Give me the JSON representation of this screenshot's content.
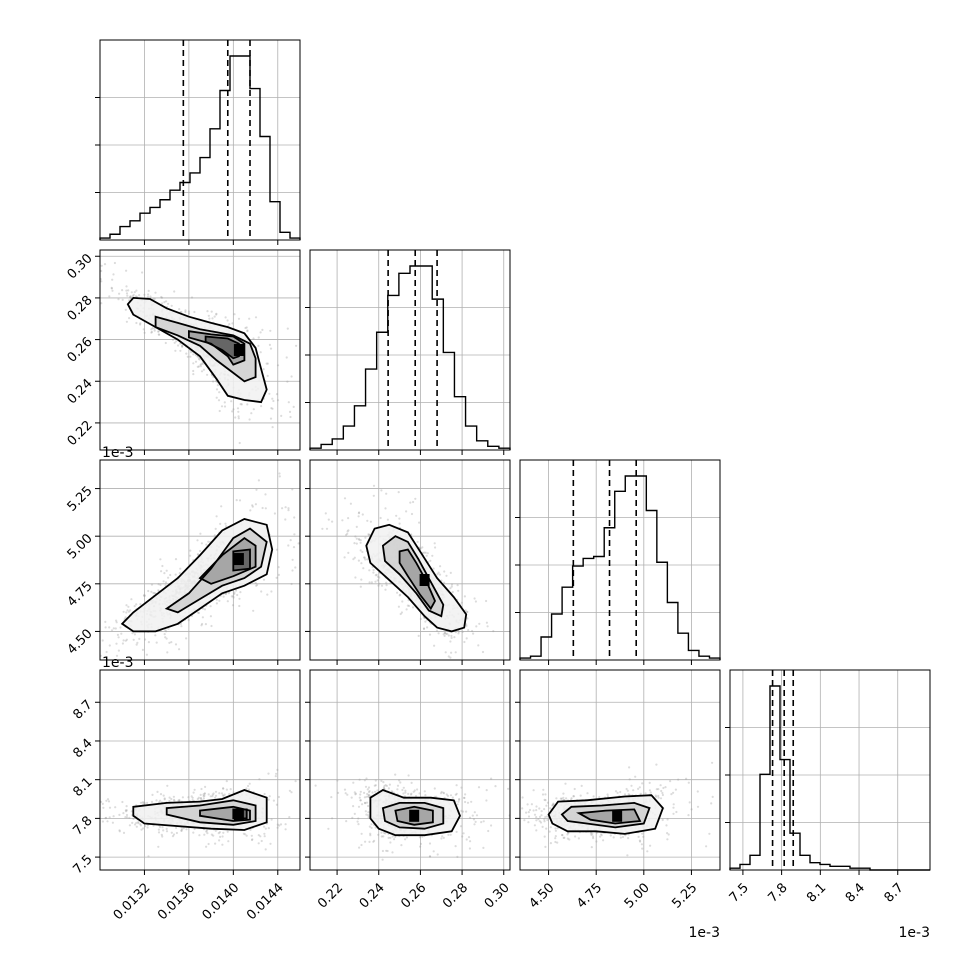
{
  "chart_data": {
    "type": "corner",
    "parameters": [
      {
        "range": [
          0.0128,
          0.0146
        ],
        "ticks": [
          0.0132,
          0.0136,
          0.014,
          0.0144
        ],
        "tick_labels": [
          "0.0132",
          "0.0136",
          "0.0140",
          "0.0144"
        ],
        "offset_label": "",
        "quantiles": [
          0.01355,
          0.01395,
          0.01415
        ],
        "hist_counts": [
          1,
          3,
          7,
          10,
          14,
          17,
          21,
          26,
          30,
          35,
          43,
          58,
          78,
          96,
          96,
          79,
          54,
          20,
          4,
          1
        ]
      },
      {
        "range": [
          0.207,
          0.303
        ],
        "ticks": [
          0.22,
          0.24,
          0.26,
          0.28,
          0.3
        ],
        "tick_labels": [
          "0.22",
          "0.24",
          "0.26",
          "0.28",
          "0.30"
        ],
        "offset_label": "",
        "quantiles": [
          0.2445,
          0.2575,
          0.268
        ],
        "hist_counts": [
          1,
          3,
          6,
          13,
          24,
          44,
          64,
          84,
          96,
          100,
          100,
          82,
          53,
          29,
          13,
          5,
          2,
          1
        ]
      },
      {
        "range": [
          4.35,
          5.4
        ],
        "ticks": [
          4.5,
          4.75,
          5.0,
          5.25
        ],
        "tick_labels": [
          "4.50",
          "4.75",
          "5.00",
          "5.25"
        ],
        "offset_label": "1e-3",
        "quantiles": [
          4.63,
          4.82,
          4.96
        ],
        "hist_counts": [
          1,
          2,
          12,
          24,
          38,
          49,
          53,
          54,
          69,
          88,
          96,
          96,
          78,
          51,
          30,
          14,
          5,
          2,
          1
        ]
      },
      {
        "range": [
          7.4,
          8.95
        ],
        "ticks": [
          7.5,
          7.8,
          8.1,
          8.4,
          8.7
        ],
        "tick_labels": [
          "7.5",
          "7.8",
          "8.1",
          "8.4",
          "8.7"
        ],
        "offset_label": "1e-3",
        "quantiles": [
          7.73,
          7.82,
          7.89
        ],
        "hist_counts": [
          1,
          3,
          8,
          52,
          100,
          60,
          20,
          8,
          4,
          3,
          2,
          2,
          1,
          1,
          0,
          0,
          0,
          0,
          0,
          0
        ]
      }
    ],
    "pairs": [
      {
        "x": 0,
        "y": 1,
        "peak": [
          0.01405,
          0.255
        ],
        "contours": [
          [
            [
              0.0131,
              0.28
            ],
            [
              0.01325,
              0.2795
            ],
            [
              0.0134,
              0.275
            ],
            [
              0.0136,
              0.271
            ],
            [
              0.0138,
              0.268
            ],
            [
              0.01395,
              0.266
            ],
            [
              0.0141,
              0.263
            ],
            [
              0.0142,
              0.256
            ],
            [
              0.01425,
              0.246
            ],
            [
              0.0143,
              0.236
            ],
            [
              0.01425,
              0.23
            ],
            [
              0.0141,
              0.231
            ],
            [
              0.01395,
              0.233
            ],
            [
              0.01385,
              0.241
            ],
            [
              0.0137,
              0.252
            ],
            [
              0.0135,
              0.26
            ],
            [
              0.0133,
              0.266
            ],
            [
              0.0131,
              0.272
            ],
            [
              0.01305,
              0.277
            ],
            [
              0.0131,
              0.28
            ]
          ],
          [
            [
              0.0133,
              0.271
            ],
            [
              0.0135,
              0.268
            ],
            [
              0.0137,
              0.265
            ],
            [
              0.01385,
              0.2635
            ],
            [
              0.014,
              0.262
            ],
            [
              0.01415,
              0.258
            ],
            [
              0.0142,
              0.251
            ],
            [
              0.0142,
              0.242
            ],
            [
              0.0141,
              0.24
            ],
            [
              0.014,
              0.244
            ],
            [
              0.01385,
              0.25
            ],
            [
              0.0137,
              0.257
            ],
            [
              0.0135,
              0.262
            ],
            [
              0.0133,
              0.266
            ],
            [
              0.0133,
              0.271
            ]
          ],
          [
            [
              0.0136,
              0.264
            ],
            [
              0.0138,
              0.2625
            ],
            [
              0.014,
              0.2615
            ],
            [
              0.0141,
              0.258
            ],
            [
              0.0141,
              0.25
            ],
            [
              0.014,
              0.248
            ],
            [
              0.01395,
              0.252
            ],
            [
              0.0138,
              0.258
            ],
            [
              0.0136,
              0.261
            ],
            [
              0.0136,
              0.264
            ]
          ],
          [
            [
              0.01375,
              0.2615
            ],
            [
              0.01395,
              0.2605
            ],
            [
              0.01405,
              0.258
            ],
            [
              0.01405,
              0.252
            ],
            [
              0.014,
              0.251
            ],
            [
              0.0139,
              0.255
            ],
            [
              0.01375,
              0.259
            ],
            [
              0.01375,
              0.2615
            ]
          ]
        ]
      },
      {
        "x": 0,
        "y": 2,
        "peak": [
          0.01405,
          4.88
        ],
        "contours": [
          [
            [
              0.013,
              4.54
            ],
            [
              0.0131,
              4.6
            ],
            [
              0.0133,
              4.69
            ],
            [
              0.0135,
              4.78
            ],
            [
              0.0137,
              4.9
            ],
            [
              0.0139,
              5.03
            ],
            [
              0.0141,
              5.09
            ],
            [
              0.0143,
              5.06
            ],
            [
              0.01435,
              4.93
            ],
            [
              0.0143,
              4.8
            ],
            [
              0.0141,
              4.74
            ],
            [
              0.0139,
              4.7
            ],
            [
              0.0137,
              4.62
            ],
            [
              0.0135,
              4.54
            ],
            [
              0.0133,
              4.5
            ],
            [
              0.0131,
              4.5
            ],
            [
              0.013,
              4.54
            ]
          ],
          [
            [
              0.0134,
              4.62
            ],
            [
              0.0136,
              4.7
            ],
            [
              0.0138,
              4.83
            ],
            [
              0.014,
              4.99
            ],
            [
              0.01415,
              5.04
            ],
            [
              0.0143,
              4.97
            ],
            [
              0.01425,
              4.84
            ],
            [
              0.0141,
              4.78
            ],
            [
              0.0139,
              4.74
            ],
            [
              0.0137,
              4.67
            ],
            [
              0.0135,
              4.6
            ],
            [
              0.0134,
              4.62
            ]
          ],
          [
            [
              0.0137,
              4.78
            ],
            [
              0.0139,
              4.9
            ],
            [
              0.0141,
              4.99
            ],
            [
              0.0142,
              4.95
            ],
            [
              0.0142,
              4.84
            ],
            [
              0.014,
              4.79
            ],
            [
              0.0138,
              4.75
            ],
            [
              0.0137,
              4.78
            ]
          ],
          [
            [
              0.014,
              4.92
            ],
            [
              0.01415,
              4.93
            ],
            [
              0.01415,
              4.83
            ],
            [
              0.014,
              4.82
            ],
            [
              0.014,
              4.92
            ]
          ]
        ]
      },
      {
        "x": 1,
        "y": 2,
        "peak": [
          0.262,
          4.77
        ],
        "contours": [
          [
            [
              0.234,
              4.95
            ],
            [
              0.238,
              5.04
            ],
            [
              0.245,
              5.06
            ],
            [
              0.254,
              5.02
            ],
            [
              0.261,
              4.9
            ],
            [
              0.268,
              4.78
            ],
            [
              0.276,
              4.68
            ],
            [
              0.282,
              4.59
            ],
            [
              0.281,
              4.52
            ],
            [
              0.275,
              4.5
            ],
            [
              0.268,
              4.52
            ],
            [
              0.262,
              4.58
            ],
            [
              0.254,
              4.68
            ],
            [
              0.244,
              4.78
            ],
            [
              0.236,
              4.86
            ],
            [
              0.234,
              4.95
            ]
          ],
          [
            [
              0.242,
              4.95
            ],
            [
              0.248,
              5.0
            ],
            [
              0.254,
              4.97
            ],
            [
              0.259,
              4.88
            ],
            [
              0.265,
              4.76
            ],
            [
              0.271,
              4.64
            ],
            [
              0.27,
              4.58
            ],
            [
              0.264,
              4.61
            ],
            [
              0.258,
              4.7
            ],
            [
              0.25,
              4.8
            ],
            [
              0.243,
              4.87
            ],
            [
              0.242,
              4.95
            ]
          ],
          [
            [
              0.25,
              4.92
            ],
            [
              0.254,
              4.93
            ],
            [
              0.258,
              4.86
            ],
            [
              0.263,
              4.76
            ],
            [
              0.267,
              4.66
            ],
            [
              0.265,
              4.62
            ],
            [
              0.26,
              4.69
            ],
            [
              0.254,
              4.79
            ],
            [
              0.25,
              4.86
            ],
            [
              0.25,
              4.92
            ]
          ]
        ]
      },
      {
        "x": 0,
        "y": 3,
        "peak": [
          0.01405,
          7.83
        ],
        "contours": [
          [
            [
              0.0131,
              7.82
            ],
            [
              0.0131,
              7.89
            ],
            [
              0.0134,
              7.92
            ],
            [
              0.0137,
              7.93
            ],
            [
              0.0139,
              7.95
            ],
            [
              0.0141,
              8.02
            ],
            [
              0.0143,
              7.96
            ],
            [
              0.0143,
              7.77
            ],
            [
              0.0141,
              7.71
            ],
            [
              0.0138,
              7.72
            ],
            [
              0.0135,
              7.74
            ],
            [
              0.0132,
              7.76
            ],
            [
              0.0131,
              7.82
            ]
          ],
          [
            [
              0.0134,
              7.83
            ],
            [
              0.0134,
              7.88
            ],
            [
              0.0137,
              7.9
            ],
            [
              0.014,
              7.94
            ],
            [
              0.0142,
              7.9
            ],
            [
              0.0142,
              7.78
            ],
            [
              0.014,
              7.75
            ],
            [
              0.0137,
              7.77
            ],
            [
              0.0134,
              7.83
            ]
          ],
          [
            [
              0.0137,
              7.82
            ],
            [
              0.0137,
              7.86
            ],
            [
              0.014,
              7.89
            ],
            [
              0.01415,
              7.86
            ],
            [
              0.01415,
              7.79
            ],
            [
              0.014,
              7.78
            ],
            [
              0.0137,
              7.82
            ]
          ],
          [
            [
              0.014,
              7.8
            ],
            [
              0.014,
              7.87
            ],
            [
              0.01412,
              7.87
            ],
            [
              0.01412,
              7.8
            ],
            [
              0.014,
              7.8
            ]
          ]
        ]
      },
      {
        "x": 1,
        "y": 3,
        "peak": [
          0.257,
          7.82
        ],
        "contours": [
          [
            [
              0.236,
              7.96
            ],
            [
              0.242,
              8.02
            ],
            [
              0.252,
              7.96
            ],
            [
              0.265,
              7.96
            ],
            [
              0.276,
              7.94
            ],
            [
              0.279,
              7.82
            ],
            [
              0.275,
              7.7
            ],
            [
              0.262,
              7.67
            ],
            [
              0.248,
              7.67
            ],
            [
              0.24,
              7.72
            ],
            [
              0.236,
              7.8
            ],
            [
              0.236,
              7.96
            ]
          ],
          [
            [
              0.242,
              7.88
            ],
            [
              0.25,
              7.92
            ],
            [
              0.262,
              7.92
            ],
            [
              0.271,
              7.88
            ],
            [
              0.271,
              7.76
            ],
            [
              0.262,
              7.72
            ],
            [
              0.25,
              7.73
            ],
            [
              0.243,
              7.78
            ],
            [
              0.242,
              7.88
            ]
          ],
          [
            [
              0.248,
              7.86
            ],
            [
              0.257,
              7.89
            ],
            [
              0.266,
              7.86
            ],
            [
              0.266,
              7.77
            ],
            [
              0.257,
              7.75
            ],
            [
              0.249,
              7.78
            ],
            [
              0.248,
              7.86
            ]
          ]
        ]
      },
      {
        "x": 2,
        "y": 3,
        "peak": [
          4.86,
          7.82
        ],
        "contours": [
          [
            [
              4.5,
              7.83
            ],
            [
              4.55,
              7.93
            ],
            [
              4.7,
              7.94
            ],
            [
              4.9,
              7.97
            ],
            [
              5.04,
              7.98
            ],
            [
              5.1,
              7.88
            ],
            [
              5.06,
              7.72
            ],
            [
              4.9,
              7.68
            ],
            [
              4.75,
              7.7
            ],
            [
              4.6,
              7.7
            ],
            [
              4.52,
              7.76
            ],
            [
              4.5,
              7.83
            ]
          ],
          [
            [
              4.57,
              7.83
            ],
            [
              4.62,
              7.89
            ],
            [
              4.78,
              7.9
            ],
            [
              4.95,
              7.92
            ],
            [
              5.03,
              7.88
            ],
            [
              5.0,
              7.76
            ],
            [
              4.85,
              7.73
            ],
            [
              4.7,
              7.76
            ],
            [
              4.6,
              7.78
            ],
            [
              4.57,
              7.83
            ]
          ],
          [
            [
              4.66,
              7.84
            ],
            [
              4.8,
              7.86
            ],
            [
              4.95,
              7.87
            ],
            [
              4.98,
              7.78
            ],
            [
              4.85,
              7.76
            ],
            [
              4.72,
              7.79
            ],
            [
              4.66,
              7.84
            ]
          ]
        ]
      }
    ]
  }
}
